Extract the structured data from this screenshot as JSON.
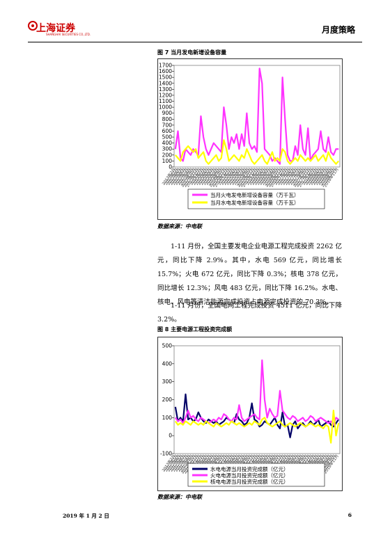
{
  "header": {
    "logo": "上海证券",
    "logo_en": "SHANGHAI SECURITIES CO.,LTD.",
    "section": "月度策略"
  },
  "chart_data": [
    {
      "type": "line",
      "title": "图 7 当月发电新增设备容量",
      "categories": [
        "2013年2月",
        "2013年3月",
        "2013年4月",
        "2013年5月",
        "2013年6月",
        "2013年7月",
        "2013年8月",
        "2013年9月",
        "2013年10月",
        "2013年11月",
        "2013年12月",
        "2014年2月",
        "2014年3月",
        "2014年4月",
        "2014年5月",
        "2014年6月",
        "2014年7月",
        "2014年8月",
        "2014年9月",
        "2014年10月",
        "2014年11月",
        "2014年12月",
        "2015年2月",
        "2015年3月",
        "2015年4月",
        "2015年5月",
        "2015年6月",
        "2015年7月",
        "2015年8月",
        "2015年9月",
        "2015年10月",
        "2015年11月",
        "2015年12月",
        "2016年2月",
        "2016年3月",
        "2016年4月",
        "2016年5月",
        "2016年6月",
        "2016年7月",
        "2016年8月",
        "2016年9月",
        "2016年10月",
        "2016年11月",
        "2016年12月",
        "2017年2月",
        "2017年3月",
        "2017年4月",
        "2017年5月",
        "2017年6月",
        "2017年7月",
        "2017年8月",
        "2017年9月",
        "2017年10月",
        "2017年11月",
        "2017年12月",
        "2018年2月",
        "2018年3月",
        "2018年4月",
        "2018年5月",
        "2018年6月",
        "2018年7月",
        "2018年8月",
        "2018年9月",
        "2018年10月",
        "2018年11月"
      ],
      "series": [
        {
          "name": "当月火电发电新增设备容量（万千瓦）",
          "color": "#ff33ff",
          "values": [
            300,
            600,
            150,
            100,
            300,
            250,
            200,
            300,
            250,
            200,
            850,
            500,
            300,
            200,
            300,
            400,
            350,
            300,
            250,
            1000,
            700,
            300,
            500,
            400,
            550,
            300,
            550,
            350,
            900,
            400,
            300,
            350,
            250,
            1650,
            1400,
            300,
            250,
            200,
            100,
            150,
            100,
            50,
            1500,
            800,
            200,
            100,
            100,
            350,
            200,
            700,
            300,
            200,
            650,
            100,
            200,
            250,
            300,
            600,
            300,
            250,
            500,
            250,
            200,
            300,
            300
          ]
        },
        {
          "name": "当月水电发电新增设备容量（万千瓦）",
          "color": "#ffff00",
          "values": [
            200,
            150,
            100,
            250,
            300,
            350,
            300,
            250,
            300,
            150,
            200,
            250,
            100,
            50,
            100,
            150,
            200,
            100,
            150,
            450,
            300,
            100,
            150,
            200,
            150,
            100,
            200,
            150,
            300,
            200,
            100,
            50,
            100,
            150,
            200,
            100,
            50,
            150,
            250,
            100,
            150,
            100,
            300,
            250,
            100,
            50,
            100,
            150,
            100,
            200,
            150,
            100,
            150,
            100,
            150,
            200,
            100,
            150,
            200,
            100,
            250,
            150,
            100,
            50,
            100
          ]
        }
      ],
      "ylim": [
        0,
        1700
      ],
      "yticks": [
        0,
        100,
        200,
        300,
        400,
        500,
        600,
        700,
        800,
        900,
        1000,
        1100,
        1200,
        1300,
        1400,
        1500,
        1600,
        1700
      ],
      "source": "数据来源：中电联"
    },
    {
      "type": "line",
      "title": "图 8 主要电源工程投资完成额",
      "categories": [
        "2013年2月",
        "2013年3月",
        "2013年4月",
        "2013年5月",
        "2013年6月",
        "2013年7月",
        "2013年8月",
        "2013年9月",
        "2013年10月",
        "2013年11月",
        "2013年12月",
        "2014年2月",
        "2014年3月",
        "2014年4月",
        "2014年5月",
        "2014年6月",
        "2014年7月",
        "2014年8月",
        "2014年9月",
        "2014年10月",
        "2014年11月",
        "2014年12月",
        "2015年2月",
        "2015年3月",
        "2015年4月",
        "2015年5月",
        "2015年6月",
        "2015年7月",
        "2015年8月",
        "2015年9月",
        "2015年10月",
        "2015年11月",
        "2015年12月",
        "2016年2月",
        "2016年3月",
        "2016年4月",
        "2016年5月",
        "2016年6月",
        "2016年7月",
        "2016年8月",
        "2016年9月",
        "2016年10月",
        "2016年11月",
        "2016年12月",
        "2017年2月",
        "2017年3月",
        "2017年4月",
        "2017年5月",
        "2017年6月",
        "2017年7月",
        "2017年8月",
        "2017年9月",
        "2017年10月",
        "2017年11月",
        "2017年12月",
        "2018年2月",
        "2018年3月",
        "2018年4月",
        "2018年5月",
        "2018年6月",
        "2018年7月",
        "2018年8月",
        "2018年9月",
        "2018年10月",
        "2018年11月"
      ],
      "series": [
        {
          "name": "水电电源当月投资完成额（亿元）",
          "color": "#000066",
          "values": [
            160,
            80,
            100,
            80,
            230,
            90,
            100,
            80,
            90,
            130,
            100,
            80,
            70,
            90,
            80,
            70,
            80,
            60,
            70,
            80,
            100,
            90,
            80,
            70,
            120,
            90,
            80,
            60,
            70,
            100,
            180,
            90,
            80,
            50,
            60,
            80,
            70,
            60,
            80,
            100,
            60,
            40,
            130,
            50,
            60,
            -10,
            60,
            80,
            40,
            60,
            70,
            50,
            60,
            80,
            60,
            70,
            90,
            50,
            60,
            70,
            80,
            60,
            50,
            70,
            90
          ]
        },
        {
          "name": "火电电源当月投资完成额（亿元）",
          "color": "#ff33ff",
          "values": [
            100,
            80,
            90,
            70,
            100,
            140,
            100,
            110,
            90,
            80,
            100,
            90,
            80,
            70,
            80,
            90,
            80,
            100,
            90,
            120,
            110,
            90,
            80,
            100,
            90,
            170,
            100,
            80,
            90,
            100,
            110,
            120,
            100,
            90,
            420,
            200,
            100,
            150,
            120,
            100,
            110,
            250,
            140,
            120,
            100,
            90,
            110,
            100,
            80,
            90,
            100,
            80,
            90,
            110,
            100,
            80,
            90,
            100,
            90,
            80,
            70,
            80,
            60,
            100,
            90
          ]
        },
        {
          "name": "核电电源当月投资完成额（亿元）",
          "color": "#ffff00",
          "values": [
            80,
            60,
            70,
            60,
            80,
            70,
            60,
            80,
            70,
            60,
            70,
            60,
            80,
            70,
            60,
            50,
            70,
            60,
            50,
            60,
            70,
            60,
            80,
            70,
            60,
            70,
            60,
            50,
            60,
            70,
            60,
            80,
            70,
            60,
            90,
            100,
            70,
            60,
            50,
            60,
            70,
            80,
            60,
            50,
            60,
            70,
            60,
            50,
            60,
            70,
            60,
            50,
            60,
            70,
            60,
            50,
            60,
            50,
            40,
            60,
            50,
            -40,
            140,
            0,
            70
          ]
        }
      ],
      "ylim": [
        -100,
        500
      ],
      "yticks": [
        -100,
        0,
        100,
        200,
        300,
        400,
        500
      ],
      "source": "数据来源：中电联"
    }
  ],
  "paragraphs": [
    "1-11 月份，全国主要发电企业电源工程完成投资 2262 亿元，同比下降 2.9%。其中，水电 569 亿元，同比增长 15.7%；火电 672 亿元，同比下降 0.3%；核电 378 亿元，同比增长 12.3%；风电 483 亿元，同比下降 16.2%。水电、核电、风电等清洁能源完成投资占电源完成投资的 70.3%。",
    "1-11 月份，全国电网工程完成投资 4511 亿元，同比下降 3.2%。"
  ],
  "footer": {
    "date": "2019 年 1 月 2 日",
    "page": "6"
  }
}
